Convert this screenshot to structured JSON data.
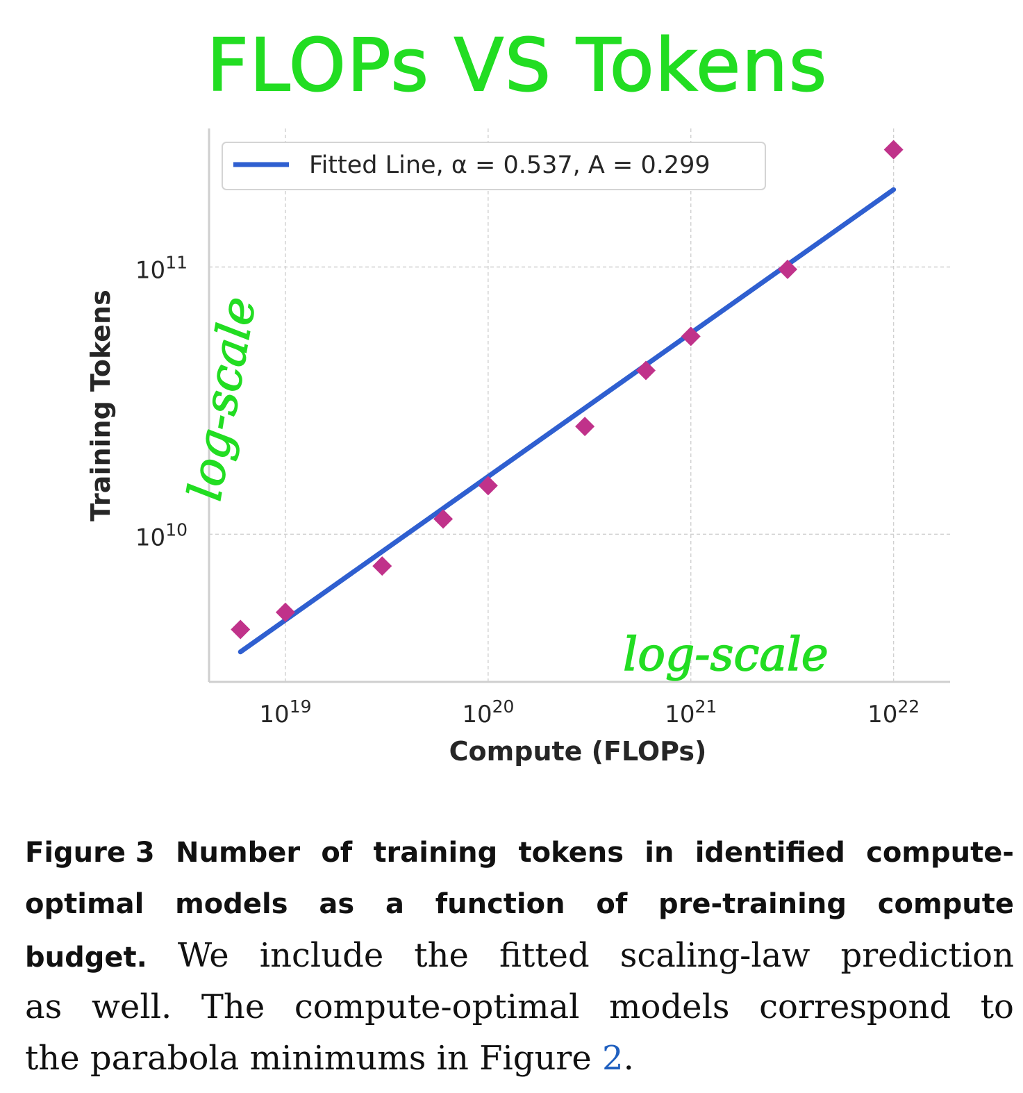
{
  "annotations": {
    "title": "FLOPs VS Tokens",
    "y_note": "log-scale",
    "x_note": "log-scale"
  },
  "chart_data": {
    "type": "scatter",
    "xlabel": "Compute (FLOPs)",
    "ylabel": "Training Tokens",
    "x_scale": "log",
    "y_scale": "log",
    "xlim": [
      4.2e+18,
      1.9e+22
    ],
    "ylim": [
      2800000000.0,
      330000000000.0
    ],
    "x_ticks": [
      {
        "value": 1e+19,
        "base": "10",
        "exp": "19"
      },
      {
        "value": 1e+20,
        "base": "10",
        "exp": "20"
      },
      {
        "value": 1e+21,
        "base": "10",
        "exp": "21"
      },
      {
        "value": 1e+22,
        "base": "10",
        "exp": "22"
      }
    ],
    "y_ticks": [
      {
        "value": 10000000000.0,
        "base": "10",
        "exp": "10"
      },
      {
        "value": 100000000000.0,
        "base": "10",
        "exp": "11"
      }
    ],
    "grid": true,
    "legend_position": "top-left",
    "series": [
      {
        "kind": "points",
        "marker": "diamond",
        "color": "#c0328a",
        "points": [
          {
            "x": 6e+18,
            "y": 4400000000.0
          },
          {
            "x": 1e+19,
            "y": 5100000000.0
          },
          {
            "x": 3e+19,
            "y": 7600000000.0
          },
          {
            "x": 6e+19,
            "y": 11400000000.0
          },
          {
            "x": 1e+20,
            "y": 15200000000.0
          },
          {
            "x": 3e+20,
            "y": 25300000000.0
          },
          {
            "x": 6e+20,
            "y": 41000000000.0
          },
          {
            "x": 1e+21,
            "y": 55000000000.0
          },
          {
            "x": 3e+21,
            "y": 98000000000.0
          },
          {
            "x": 1e+22,
            "y": 275000000000.0
          }
        ]
      },
      {
        "kind": "line",
        "name": "Fitted Line, α = 0.537, A = 0.299",
        "color": "#2f5fd0",
        "alpha": 0.537,
        "A": 0.299,
        "x_range": [
          6e+18,
          1e+22
        ]
      }
    ]
  },
  "caption": {
    "line1": [
      "Figure 3",
      "Number",
      "of",
      "training",
      "tokens",
      "in",
      "identified",
      "compute-"
    ],
    "line2": [
      "optimal",
      "models",
      "as",
      "a",
      "function",
      "of",
      "pre-training",
      "compute"
    ],
    "line3_bold": "budget.",
    "line3": [
      "We",
      "include",
      "the",
      "fitted",
      "scaling-law",
      "prediction"
    ],
    "line4": [
      "as",
      "well.",
      "The",
      "compute-optimal",
      "models",
      "correspond",
      "to"
    ],
    "line5_text": "the parabola minimums in Figure ",
    "line5_ref": "2",
    "line5_end": "."
  }
}
